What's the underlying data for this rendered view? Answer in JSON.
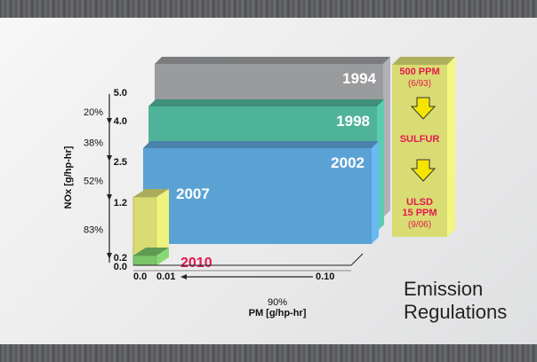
{
  "caption": {
    "line1": "Emission",
    "line2": "Regulations"
  },
  "chart_data": {
    "type": "bar",
    "title": "",
    "ylabel": "NOx",
    "yunit": "g/hp-hr",
    "xlabel": "PM",
    "xunit": "g/hp-hr",
    "y_ticks": [
      "5.0",
      "4.0",
      "2.5",
      "1.2",
      "0.2",
      "0.0"
    ],
    "x_ticks": [
      "0.0",
      "0.01",
      "0.10"
    ],
    "y_reductions": [
      "20%",
      "38%",
      "52%",
      "83%"
    ],
    "x_reduction": "90%",
    "series": [
      {
        "year": "1994",
        "nox": 5.0,
        "pm": 0.1,
        "color": "#9a9b9d",
        "label_color": "#ffffff"
      },
      {
        "year": "1998",
        "nox": 4.0,
        "pm": 0.1,
        "color": "#4fb39a",
        "label_color": "#ffffff"
      },
      {
        "year": "2002",
        "nox": 2.5,
        "pm": 0.1,
        "color": "#5ba2d4",
        "label_color": "#ffffff"
      },
      {
        "year": "2007",
        "nox": 1.2,
        "pm": 0.01,
        "color": "#d9dc72",
        "label_color": "#ffffff"
      },
      {
        "year": "2010",
        "nox": 0.2,
        "pm": 0.01,
        "color": "#7cc56b",
        "label_color": "#e3184f"
      }
    ],
    "sulfur_box": {
      "top_value": "500 PPM",
      "top_date": "(6/93)",
      "middle": "SULFUR",
      "bottom_label": "ULSD",
      "bottom_value": "15 PPM",
      "bottom_date": "(9/06)",
      "color": "#d9dc72",
      "text_color": "#e3184f"
    }
  }
}
